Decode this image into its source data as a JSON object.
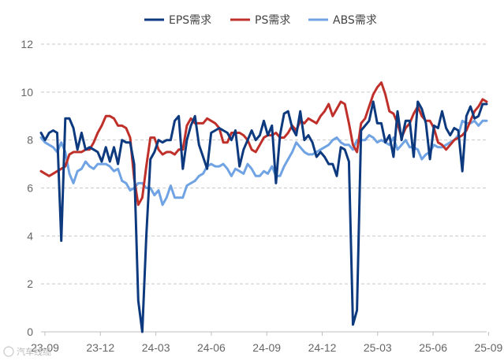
{
  "chart_data": {
    "type": "line",
    "title": "",
    "xlabel": "",
    "ylabel": "",
    "ylim": [
      0,
      12
    ],
    "yticks": [
      0,
      2,
      4,
      6,
      8,
      10,
      12
    ],
    "xticks": [
      "23-09",
      "23-12",
      "24-03",
      "24-06",
      "24-09",
      "24-12",
      "25-03",
      "25-06",
      "25-09"
    ],
    "grid": "horizontal dashed",
    "legend": "top-center",
    "series": [
      {
        "name": "EPS需求",
        "color": "#0d3a7e",
        "values": [
          8.3,
          8.0,
          8.3,
          8.4,
          8.3,
          3.8,
          8.9,
          8.9,
          8.5,
          7.6,
          8.3,
          7.6,
          7.7,
          7.6,
          7.5,
          7.1,
          7.7,
          7.1,
          7.7,
          7.0,
          8.0,
          7.9,
          7.9,
          7.0,
          1.3,
          0.0,
          4.0,
          7.2,
          7.5,
          8.0,
          7.9,
          8.0,
          8.0,
          8.8,
          9.0,
          6.8,
          8.0,
          8.6,
          9.0,
          7.8,
          7.3,
          6.8,
          8.3,
          8.4,
          8.5,
          8.4,
          8.3,
          8.0,
          8.4,
          6.9,
          7.6,
          8.0,
          8.4,
          8.0,
          8.2,
          8.8,
          8.2,
          8.6,
          6.2,
          8.2,
          9.1,
          9.2,
          8.5,
          8.2,
          9.2,
          8.0,
          8.2,
          7.9,
          7.3,
          7.5,
          7.3,
          7.0,
          7.0,
          6.5,
          7.7,
          7.6,
          7.1,
          0.3,
          0.9,
          8.4,
          8.6,
          8.8,
          9.6,
          8.7,
          8.7,
          7.9,
          8.2,
          7.3,
          9.2,
          8.0,
          8.8,
          8.8,
          7.3,
          9.6,
          9.3,
          8.7,
          7.2,
          8.6,
          8.5,
          9.2,
          8.5,
          8.2,
          8.5,
          8.4,
          6.7,
          9.0,
          9.4,
          8.9,
          9.0,
          9.5,
          9.5
        ]
      },
      {
        "name": "PS需求",
        "color": "#c0302a",
        "values": [
          6.7,
          6.6,
          6.5,
          6.6,
          6.7,
          6.8,
          6.9,
          7.4,
          7.5,
          7.5,
          7.5,
          7.6,
          7.6,
          7.9,
          8.3,
          8.6,
          9.0,
          9.0,
          8.9,
          8.6,
          8.6,
          8.5,
          8.1,
          6.4,
          5.3,
          5.6,
          6.9,
          8.1,
          8.1,
          7.6,
          7.4,
          7.5,
          7.5,
          7.4,
          7.6,
          7.6,
          8.6,
          8.9,
          8.7,
          8.7,
          8.7,
          8.9,
          8.8,
          8.7,
          8.5,
          7.9,
          7.9,
          8.3,
          8.3,
          8.3,
          8.2,
          8.0,
          7.6,
          7.5,
          7.8,
          8.1,
          8.2,
          8.2,
          8.3,
          8.1,
          8.1,
          8.3,
          8.6,
          8.4,
          8.8,
          8.7,
          8.9,
          8.8,
          8.7,
          9.0,
          9.2,
          9.5,
          9.0,
          9.3,
          9.6,
          9.5,
          8.7,
          7.8,
          7.5,
          8.7,
          8.9,
          9.4,
          9.9,
          10.2,
          10.4,
          9.9,
          9.2,
          9.1,
          8.7,
          8.1,
          8.5,
          8.7,
          9.1,
          9.4,
          9.0,
          8.8,
          8.8,
          8.5,
          7.9,
          7.8,
          7.6,
          7.8,
          8.0,
          8.1,
          8.2,
          8.4,
          8.8,
          9.2,
          9.4,
          9.7,
          9.6
        ]
      },
      {
        "name": "ABS需求",
        "color": "#6fa3e3",
        "values": [
          8.1,
          7.9,
          7.8,
          7.7,
          7.5,
          7.9,
          7.5,
          6.6,
          6.2,
          6.7,
          6.8,
          7.1,
          6.9,
          6.8,
          7.0,
          7.0,
          7.0,
          6.9,
          6.7,
          6.8,
          6.3,
          6.2,
          5.9,
          6.0,
          6.2,
          6.2,
          6.0,
          6.0,
          5.7,
          5.9,
          5.3,
          5.6,
          6.1,
          5.6,
          5.6,
          5.6,
          6.1,
          6.2,
          6.3,
          6.5,
          6.6,
          6.9,
          7.0,
          6.9,
          6.9,
          7.0,
          6.8,
          6.5,
          6.8,
          6.7,
          6.6,
          7.0,
          6.8,
          6.5,
          6.5,
          6.7,
          6.6,
          6.9,
          6.5,
          6.5,
          6.9,
          7.2,
          7.5,
          7.9,
          7.7,
          7.5,
          7.4,
          7.4,
          7.5,
          7.6,
          7.7,
          7.8,
          8.0,
          8.1,
          7.9,
          7.8,
          7.8,
          7.6,
          8.0,
          8.0,
          8.0,
          8.2,
          8.1,
          7.9,
          8.0,
          7.9,
          7.8,
          8.1,
          7.6,
          7.8,
          8.0,
          7.7,
          7.7,
          7.6,
          7.2,
          7.4,
          7.5,
          7.8,
          7.7,
          7.7,
          7.8,
          7.9,
          8.0,
          8.2,
          8.8,
          8.7,
          8.7,
          8.8,
          8.6,
          8.8,
          8.8
        ]
      }
    ]
  },
  "watermark": "汽车线缆"
}
